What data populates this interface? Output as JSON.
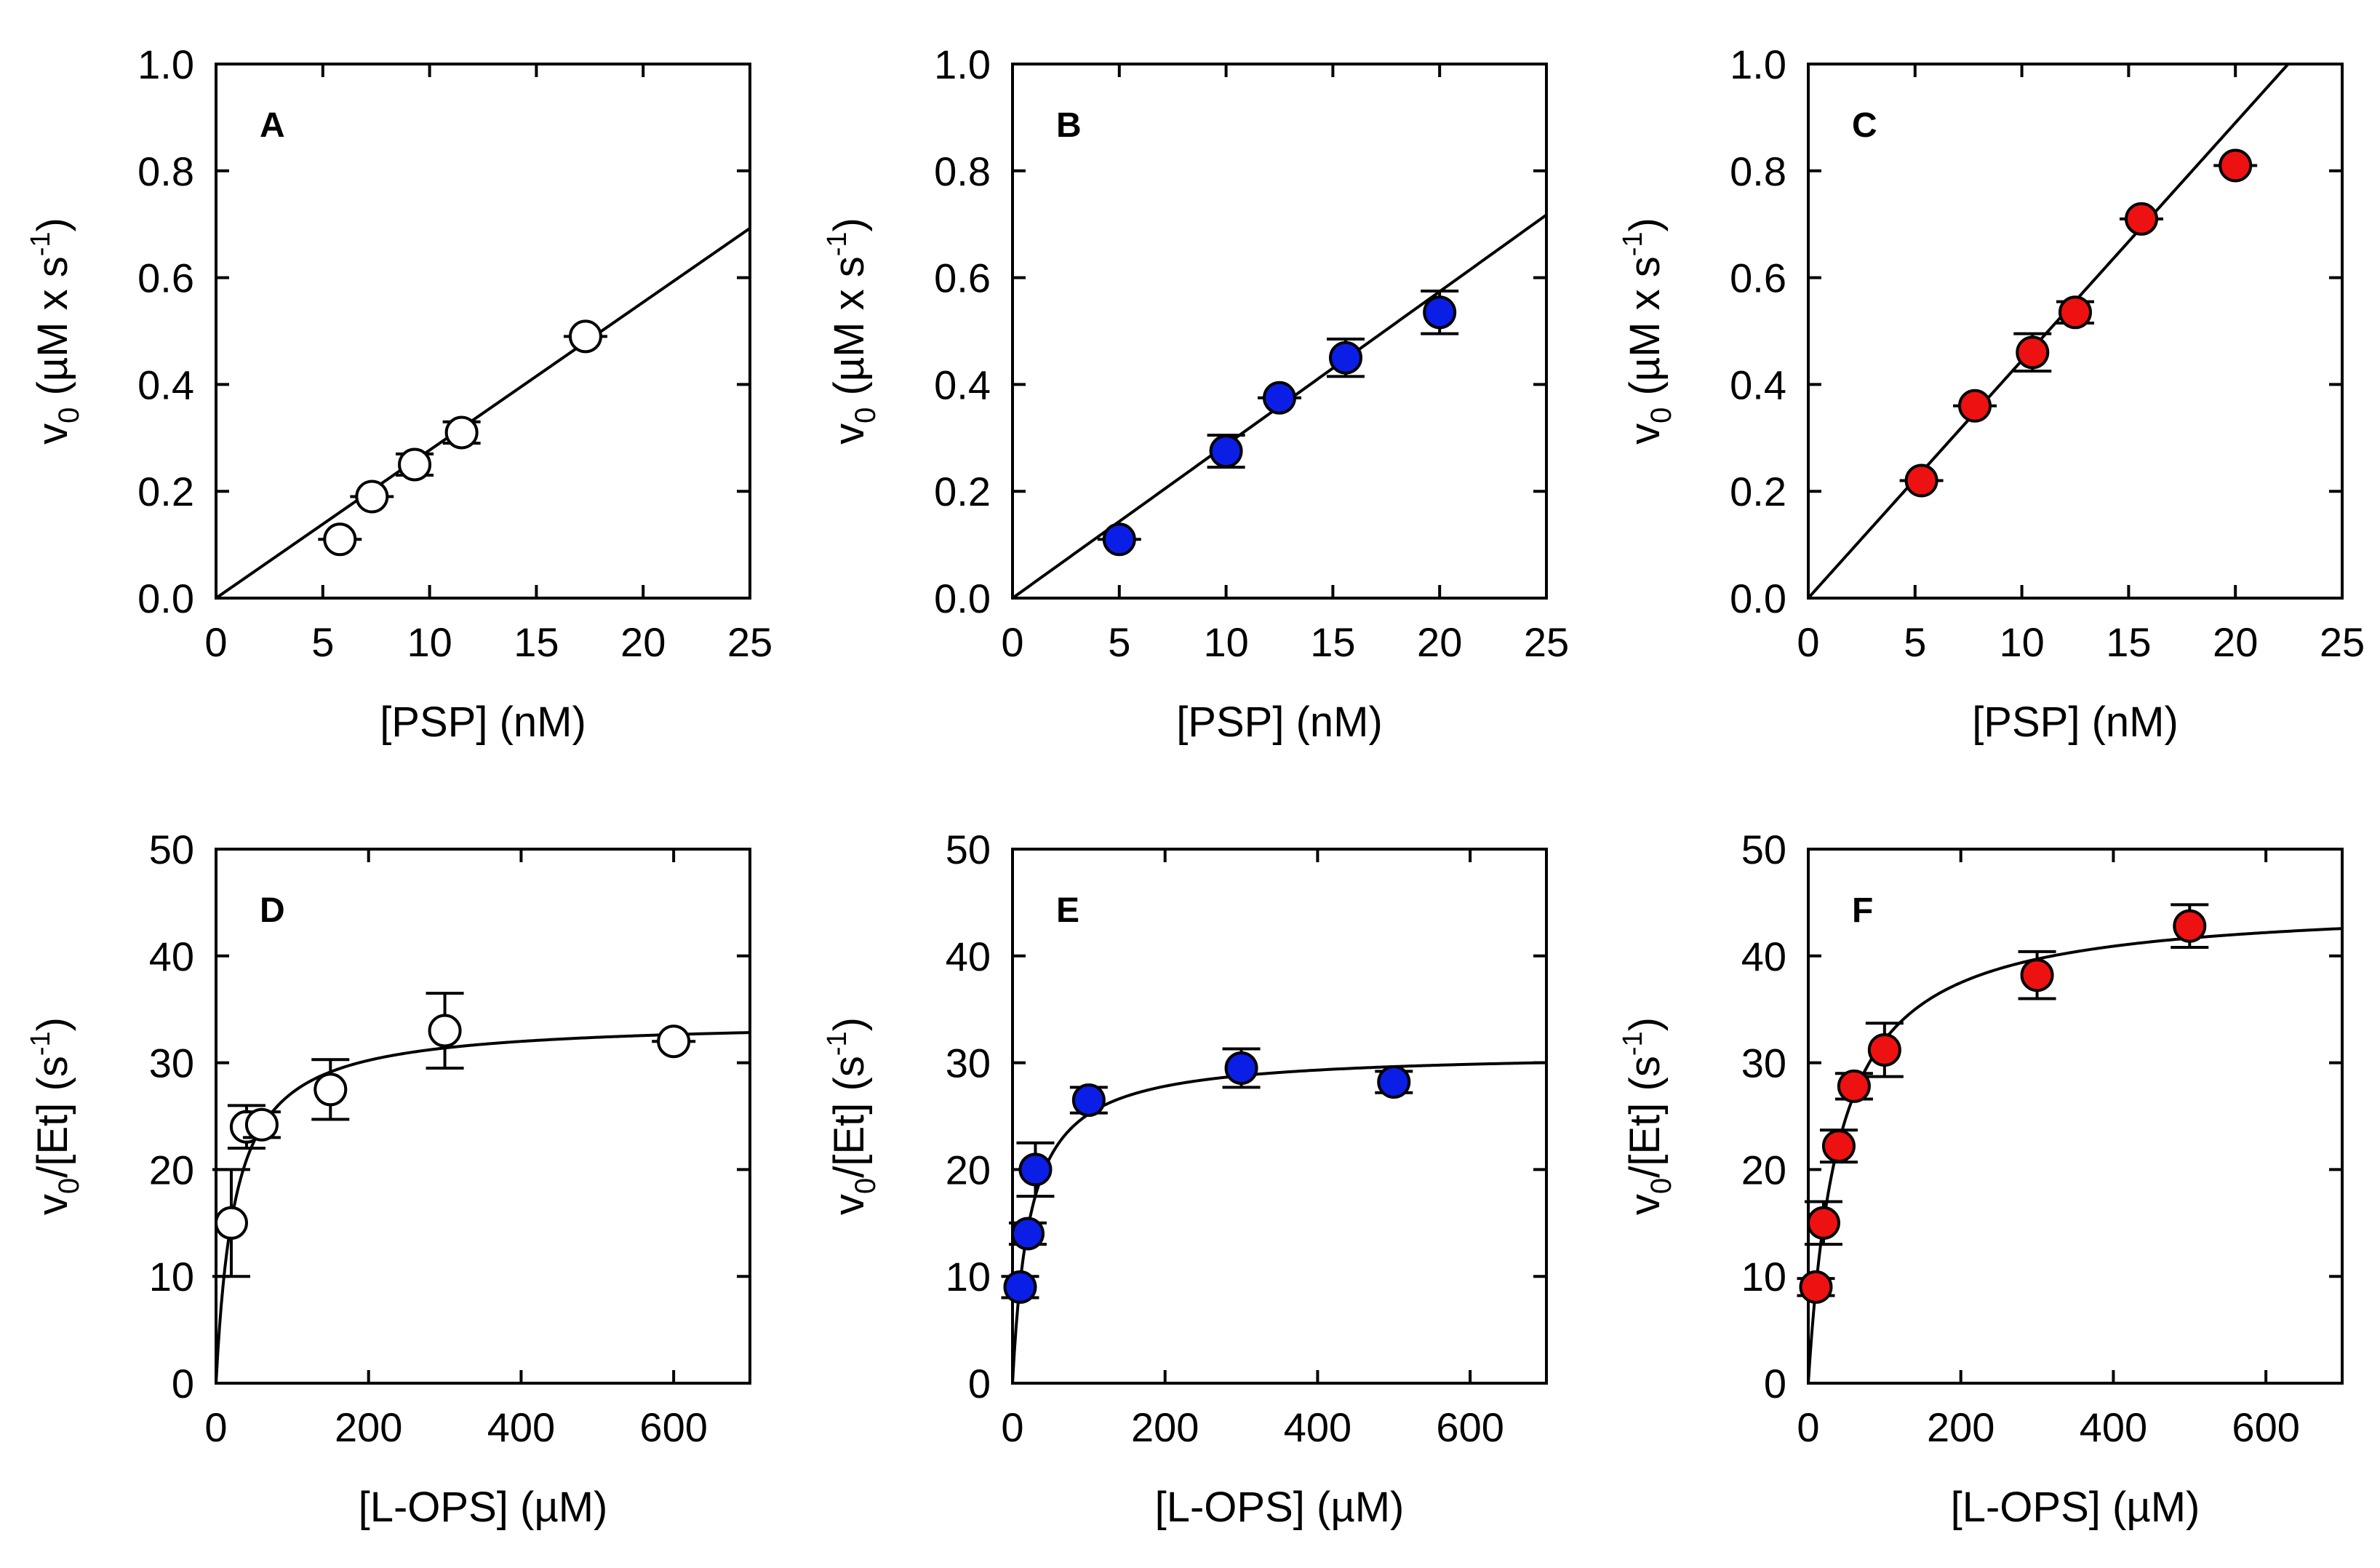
{
  "colors": {
    "open": "#ffffff",
    "blue": "#0a1ee6",
    "red": "#ee1111",
    "line": "#000000"
  },
  "chart_data": [
    {
      "type": "scatter",
      "panel": "A",
      "marker_color": "open",
      "xlabel": "[PSP] (nM)",
      "ylabel": "v0 (µM x s-1)",
      "ylabel_parts": {
        "base": "v",
        "sub": "0",
        "unit_pre": " (µM x s",
        "sup": "-1",
        "unit_post": ")"
      },
      "xlim": [
        0,
        25
      ],
      "ylim": [
        0,
        1.0
      ],
      "xticks": [
        0,
        5,
        10,
        15,
        20,
        25
      ],
      "yticks": [
        0.0,
        0.2,
        0.4,
        0.6,
        0.8,
        1.0
      ],
      "xtick_labels": [
        "0",
        "5",
        "10",
        "15",
        "20",
        "25"
      ],
      "ytick_labels": [
        "0.0",
        "0.2",
        "0.4",
        "0.6",
        "0.8",
        "1.0"
      ],
      "points": [
        {
          "x": 5.8,
          "y": 0.11,
          "err": 0.0
        },
        {
          "x": 7.3,
          "y": 0.19,
          "err": 0.0
        },
        {
          "x": 9.3,
          "y": 0.25,
          "err": 0.02
        },
        {
          "x": 11.5,
          "y": 0.31,
          "err": 0.02
        },
        {
          "x": 17.3,
          "y": 0.49,
          "err": 0.0
        }
      ],
      "fit": {
        "model": "linear",
        "slope": 0.0277,
        "intercept": 0
      }
    },
    {
      "type": "scatter",
      "panel": "B",
      "marker_color": "blue",
      "xlabel": "[PSP] (nM)",
      "ylabel": "v0 (µM x s-1)",
      "ylabel_parts": {
        "base": "v",
        "sub": "0",
        "unit_pre": " (µM x s",
        "sup": "-1",
        "unit_post": ")"
      },
      "xlim": [
        0,
        25
      ],
      "ylim": [
        0,
        1.0
      ],
      "xticks": [
        0,
        5,
        10,
        15,
        20,
        25
      ],
      "yticks": [
        0.0,
        0.2,
        0.4,
        0.6,
        0.8,
        1.0
      ],
      "xtick_labels": [
        "0",
        "5",
        "10",
        "15",
        "20",
        "25"
      ],
      "ytick_labels": [
        "0.0",
        "0.2",
        "0.4",
        "0.6",
        "0.8",
        "1.0"
      ],
      "points": [
        {
          "x": 5.0,
          "y": 0.11,
          "err": 0.0
        },
        {
          "x": 10.0,
          "y": 0.275,
          "err": 0.03
        },
        {
          "x": 12.5,
          "y": 0.375,
          "err": 0.0
        },
        {
          "x": 15.6,
          "y": 0.45,
          "err": 0.035
        },
        {
          "x": 20.0,
          "y": 0.535,
          "err": 0.04
        }
      ],
      "fit": {
        "model": "linear",
        "slope": 0.0287,
        "intercept": 0
      }
    },
    {
      "type": "scatter",
      "panel": "C",
      "marker_color": "red",
      "xlabel": "[PSP] (nM)",
      "ylabel": "v0 (µM x s-1)",
      "ylabel_parts": {
        "base": "v",
        "sub": "0",
        "unit_pre": " (µM x s",
        "sup": "-1",
        "unit_post": ")"
      },
      "xlim": [
        0,
        25
      ],
      "ylim": [
        0,
        1.0
      ],
      "xticks": [
        0,
        5,
        10,
        15,
        20,
        25
      ],
      "yticks": [
        0.0,
        0.2,
        0.4,
        0.6,
        0.8,
        1.0
      ],
      "xtick_labels": [
        "0",
        "5",
        "10",
        "15",
        "20",
        "25"
      ],
      "ytick_labels": [
        "0.0",
        "0.2",
        "0.4",
        "0.6",
        "0.8",
        "1.0"
      ],
      "points": [
        {
          "x": 5.3,
          "y": 0.22,
          "err": 0.0
        },
        {
          "x": 7.8,
          "y": 0.36,
          "err": 0.0
        },
        {
          "x": 10.5,
          "y": 0.46,
          "err": 0.035
        },
        {
          "x": 12.5,
          "y": 0.535,
          "err": 0.02
        },
        {
          "x": 15.6,
          "y": 0.71,
          "err": 0.0
        },
        {
          "x": 20.0,
          "y": 0.81,
          "err": 0.0
        }
      ],
      "fit": {
        "model": "linear",
        "slope": 0.0445,
        "intercept": 0
      }
    },
    {
      "type": "scatter",
      "panel": "D",
      "marker_color": "open",
      "xlabel": "[L-OPS] (µM)",
      "ylabel": "v0/[Et] (s-1)",
      "ylabel_parts": {
        "base": "v",
        "sub": "0",
        "unit_pre": "/[Et] (s",
        "sup": "-1",
        "unit_post": ")"
      },
      "xlim": [
        0,
        700
      ],
      "ylim": [
        0,
        50
      ],
      "xticks": [
        0,
        200,
        400,
        600
      ],
      "yticks": [
        0,
        10,
        20,
        30,
        40,
        50
      ],
      "xtick_labels": [
        "0",
        "200",
        "400",
        "600"
      ],
      "ytick_labels": [
        "0",
        "10",
        "20",
        "30",
        "40",
        "50"
      ],
      "points": [
        {
          "x": 20,
          "y": 15,
          "err": 5
        },
        {
          "x": 40,
          "y": 24,
          "err": 2
        },
        {
          "x": 60,
          "y": 24.2,
          "err": 1.2
        },
        {
          "x": 150,
          "y": 27.5,
          "err": 2.8
        },
        {
          "x": 300,
          "y": 33,
          "err": 3.5
        },
        {
          "x": 600,
          "y": 32,
          "err": 0
        }
      ],
      "fit": {
        "model": "michaelis-menten",
        "vmax": 34,
        "km": 25
      }
    },
    {
      "type": "scatter",
      "panel": "E",
      "marker_color": "blue",
      "xlabel": "[L-OPS] (µM)",
      "ylabel": "v0/[Et] (s-1)",
      "ylabel_parts": {
        "base": "v",
        "sub": "0",
        "unit_pre": "/[Et] (s",
        "sup": "-1",
        "unit_post": ")"
      },
      "xlim": [
        0,
        700
      ],
      "ylim": [
        0,
        50
      ],
      "xticks": [
        0,
        200,
        400,
        600
      ],
      "yticks": [
        0,
        10,
        20,
        30,
        40,
        50
      ],
      "xtick_labels": [
        "0",
        "200",
        "400",
        "600"
      ],
      "ytick_labels": [
        "0",
        "10",
        "20",
        "30",
        "40",
        "50"
      ],
      "points": [
        {
          "x": 10,
          "y": 9,
          "err": 1
        },
        {
          "x": 20,
          "y": 14,
          "err": 1
        },
        {
          "x": 30,
          "y": 20,
          "err": 2.5
        },
        {
          "x": 100,
          "y": 26.5,
          "err": 1.2
        },
        {
          "x": 300,
          "y": 29.5,
          "err": 1.8
        },
        {
          "x": 500,
          "y": 28.2,
          "err": 1
        }
      ],
      "fit": {
        "model": "michaelis-menten",
        "vmax": 31,
        "km": 23
      }
    },
    {
      "type": "scatter",
      "panel": "F",
      "marker_color": "red",
      "xlabel": "[L-OPS] (µM)",
      "ylabel": "v0/[Et] (s-1)",
      "ylabel_parts": {
        "base": "v",
        "sub": "0",
        "unit_pre": "/[Et] (s",
        "sup": "-1",
        "unit_post": ")"
      },
      "xlim": [
        0,
        700
      ],
      "ylim": [
        0,
        50
      ],
      "xticks": [
        0,
        200,
        400,
        600
      ],
      "yticks": [
        0,
        10,
        20,
        30,
        40,
        50
      ],
      "xtick_labels": [
        "0",
        "200",
        "400",
        "600"
      ],
      "ytick_labels": [
        "0",
        "10",
        "20",
        "30",
        "40",
        "50"
      ],
      "points": [
        {
          "x": 10,
          "y": 9,
          "err": 0.8
        },
        {
          "x": 20,
          "y": 15,
          "err": 2
        },
        {
          "x": 40,
          "y": 22.2,
          "err": 1.5
        },
        {
          "x": 60,
          "y": 27.8,
          "err": 1.2
        },
        {
          "x": 100,
          "y": 31.2,
          "err": 2.5
        },
        {
          "x": 300,
          "y": 38.2,
          "err": 2.2
        },
        {
          "x": 500,
          "y": 42.8,
          "err": 2
        }
      ],
      "fit": {
        "model": "michaelis-menten",
        "vmax": 45,
        "km": 40
      }
    }
  ]
}
